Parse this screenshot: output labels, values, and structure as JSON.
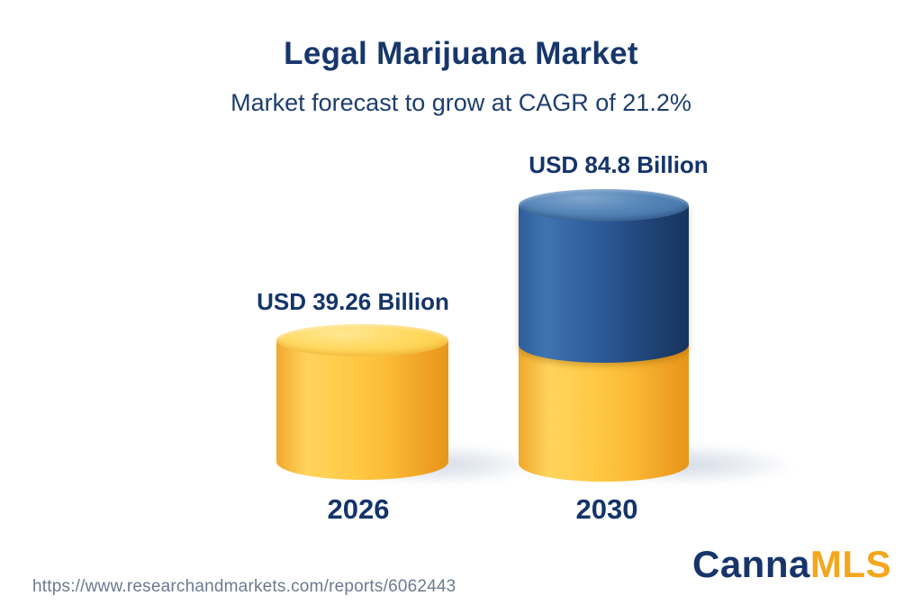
{
  "header": {
    "title": "Legal Marijuana Market",
    "subtitle": "Market forecast to grow at CAGR of 21.2%"
  },
  "chart_data": {
    "type": "bar",
    "style": "3d-cylinder-infographic",
    "title": "Legal Marijuana Market",
    "subtitle": "Market forecast to grow at CAGR of 21.2%",
    "unit": "USD Billion",
    "cagr_percent": 21.2,
    "categories": [
      "2026",
      "2030"
    ],
    "values": [
      39.26,
      84.8
    ],
    "axes": "none",
    "grid": false,
    "legend": null,
    "bars": [
      {
        "category": "2026",
        "value": 39.26,
        "value_label": "USD 39.26 Billion",
        "segment_colors": [
          "#FFC844"
        ]
      },
      {
        "category": "2030",
        "value": 84.8,
        "value_label": "USD 84.8 Billion",
        "segment_colors": [
          "#2A5694",
          "#FFC844"
        ]
      }
    ]
  },
  "footer": {
    "source_url": "https://www.researchandmarkets.com/reports/6062443",
    "logo": {
      "part1": "Canna",
      "part2": "MLS"
    }
  },
  "colors": {
    "background": "#FFFFFF",
    "navy_text": "#17376B",
    "yellow": "#FFC844",
    "blue": "#2A5694",
    "url_text": "#6C7A8F",
    "logo_navy": "#17356B",
    "logo_amber": "#F3A71D"
  }
}
